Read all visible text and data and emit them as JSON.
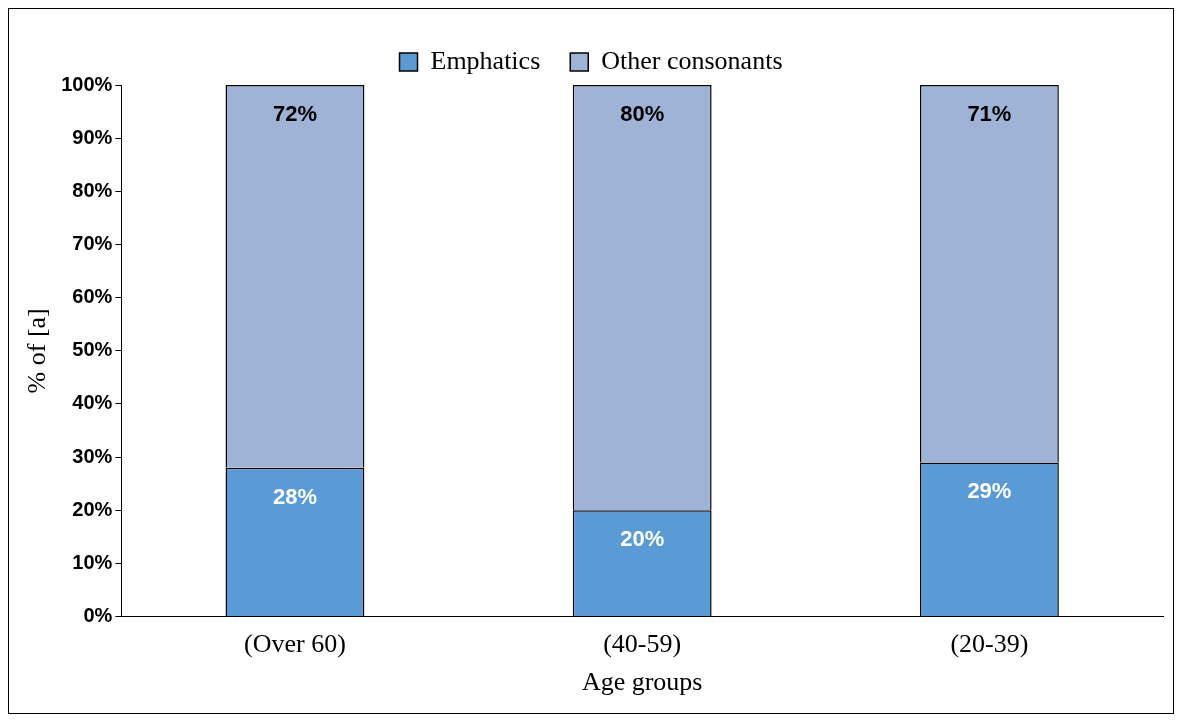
{
  "chart_data": {
    "type": "bar",
    "stacked": true,
    "xlabel": "Age groups",
    "ylabel": "% of [a]",
    "categories": [
      "(Over 60)",
      "(40-59)",
      "(20-39)"
    ],
    "series": [
      {
        "name": "Emphatics",
        "color": "#5b9bd5",
        "values": [
          28,
          20,
          29
        ],
        "value_labels": [
          "28%",
          "20%",
          "29%"
        ]
      },
      {
        "name": "Other consonants",
        "color": "#9fb3d6",
        "values": [
          72,
          80,
          71
        ],
        "value_labels": [
          "72%",
          "80%",
          "71%"
        ]
      }
    ],
    "ylim": [
      0,
      100
    ],
    "yticks": [
      {
        "value": 0,
        "label": "0%"
      },
      {
        "value": 10,
        "label": "10%"
      },
      {
        "value": 20,
        "label": "20%"
      },
      {
        "value": 30,
        "label": "30%"
      },
      {
        "value": 40,
        "label": "40%"
      },
      {
        "value": 50,
        "label": "50%"
      },
      {
        "value": 60,
        "label": "60%"
      },
      {
        "value": 70,
        "label": "70%"
      },
      {
        "value": 80,
        "label": "80%"
      },
      {
        "value": 90,
        "label": "90%"
      },
      {
        "value": 100,
        "label": "100%"
      }
    ],
    "grid": false,
    "legend": "top"
  }
}
